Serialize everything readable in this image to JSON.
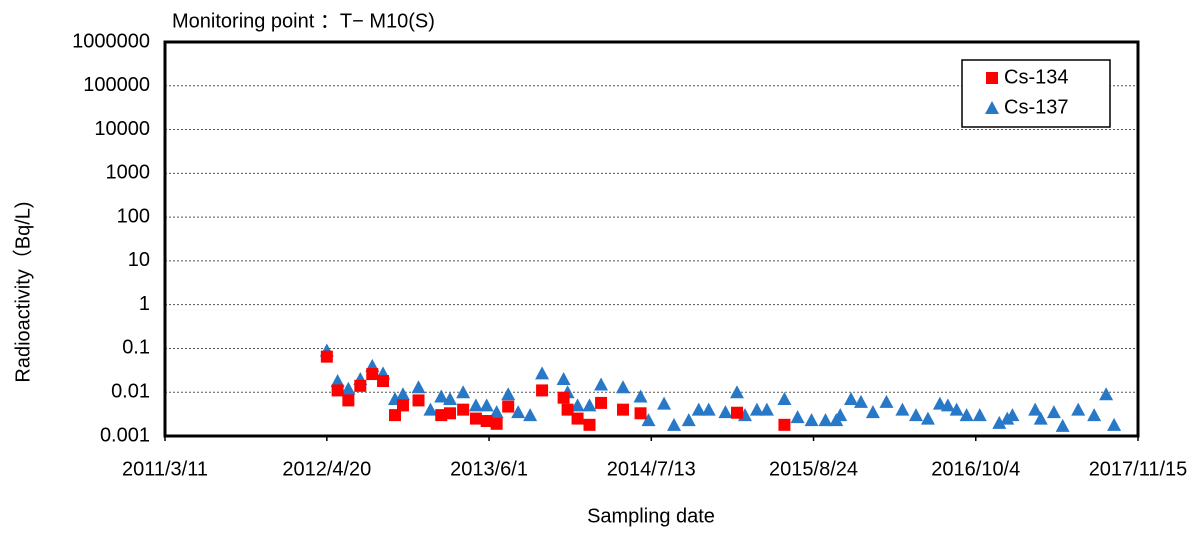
{
  "chart_data": {
    "type": "scatter",
    "title": "Monitoring point ：T− M10(S)",
    "x_label": "Sampling date",
    "y_label": "Radioactivity（Bq/L)",
    "log_y": true,
    "grid": true,
    "legend": "top-right",
    "xlim": [
      "2011/3/11",
      "2017/11/15"
    ],
    "xticks": [
      "2011/3/11",
      "2012/4/20",
      "2013/6/1",
      "2014/7/13",
      "2015/8/24",
      "2016/10/4",
      "2017/11/15"
    ],
    "ylim": [
      0.001,
      1000000
    ],
    "yticks": [
      0.001,
      0.01,
      0.1,
      1,
      10,
      100,
      1000,
      10000,
      100000,
      1000000
    ],
    "series": [
      {
        "name": "Cs-134",
        "color": "#ff0000",
        "marker": "square",
        "x": [
          "2012/4/20",
          "2012/5/17",
          "2012/6/13",
          "2012/7/13",
          "2012/8/12",
          "2012/9/8",
          "2012/10/8",
          "2012/10/28",
          "2012/12/6",
          "2013/2/1",
          "2013/2/23",
          "2013/3/28",
          "2013/4/29",
          "2013/5/26",
          "2013/6/20",
          "2013/7/19",
          "2013/10/12",
          "2013/12/5",
          "2013/12/15",
          "2014/1/9",
          "2014/2/8",
          "2014/3/9",
          "2014/5/3",
          "2014/6/16",
          "2015/2/13",
          "2015/6/12"
        ],
        "values": [
          0.065,
          0.011,
          0.0065,
          0.014,
          0.026,
          0.018,
          0.003,
          0.005,
          0.0065,
          0.003,
          0.0033,
          0.004,
          0.0025,
          0.0022,
          0.0019,
          0.0047,
          0.011,
          0.0075,
          0.004,
          0.0025,
          0.0018,
          0.0057,
          0.004,
          0.0033,
          0.0034,
          0.0018
        ]
      },
      {
        "name": "Cs-137",
        "color": "#2878c8",
        "marker": "triangle",
        "x": [
          "2012/4/20",
          "2012/5/17",
          "2012/6/13",
          "2012/7/13",
          "2012/8/12",
          "2012/9/8",
          "2012/10/8",
          "2012/10/28",
          "2012/12/6",
          "2013/1/5",
          "2013/2/1",
          "2013/2/23",
          "2013/3/28",
          "2013/4/29",
          "2013/5/26",
          "2013/6/20",
          "2013/7/19",
          "2013/8/13",
          "2013/9/12",
          "2013/10/12",
          "2013/12/5",
          "2013/12/15",
          "2014/1/9",
          "2014/2/8",
          "2014/3/9",
          "2014/5/3",
          "2014/6/16",
          "2014/7/6",
          "2014/8/14",
          "2014/9/8",
          "2014/10/15",
          "2014/11/9",
          "2014/12/4",
          "2015/1/15",
          "2015/2/13",
          "2015/3/5",
          "2015/4/4",
          "2015/4/29",
          "2015/6/12",
          "2015/7/15",
          "2015/8/19",
          "2015/9/23",
          "2015/10/20",
          "2015/10/30",
          "2015/11/26",
          "2015/12/21",
          "2016/1/20",
          "2016/2/23",
          "2016/4/3",
          "2016/5/7",
          "2016/6/6",
          "2016/7/6",
          "2016/7/26",
          "2016/8/17",
          "2016/9/11",
          "2016/10/14",
          "2016/12/2",
          "2016/12/22",
          "2017/1/4",
          "2017/3/2",
          "2017/3/16",
          "2017/4/18",
          "2017/5/10",
          "2017/6/18",
          "2017/7/28",
          "2017/8/27",
          "2017/9/16"
        ],
        "values": [
          0.09,
          0.018,
          0.012,
          0.02,
          0.04,
          0.027,
          0.007,
          0.009,
          0.013,
          0.004,
          0.008,
          0.007,
          0.01,
          0.005,
          0.005,
          0.0035,
          0.009,
          0.0035,
          0.003,
          0.027,
          0.02,
          0.01,
          0.005,
          0.005,
          0.015,
          0.013,
          0.008,
          0.0023,
          0.0055,
          0.0018,
          0.0023,
          0.004,
          0.004,
          0.0035,
          0.01,
          0.003,
          0.004,
          0.004,
          0.007,
          0.0027,
          0.0023,
          0.0023,
          0.0023,
          0.003,
          0.007,
          0.006,
          0.0035,
          0.006,
          0.004,
          0.003,
          0.0025,
          0.0055,
          0.005,
          0.004,
          0.003,
          0.003,
          0.002,
          0.0025,
          0.003,
          0.004,
          0.0025,
          0.0035,
          0.0017,
          0.004,
          0.003,
          0.009,
          0.0018
        ]
      }
    ]
  }
}
